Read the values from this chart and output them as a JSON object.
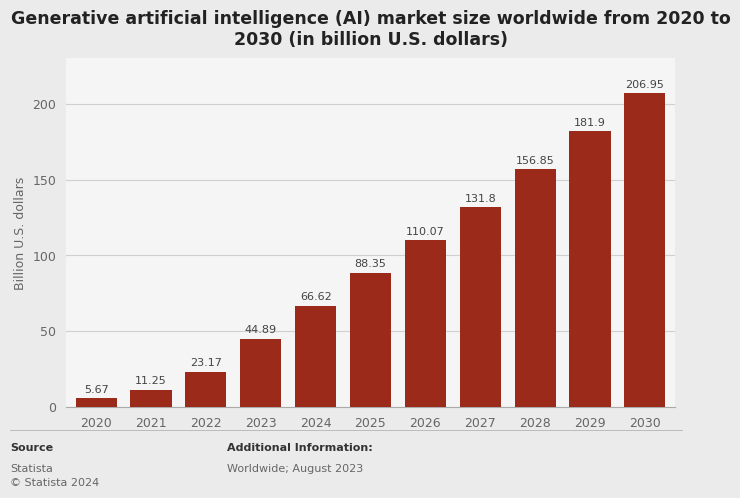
{
  "title": "Generative artificial intelligence (AI) market size worldwide from 2020 to\n2030 (in billion U.S. dollars)",
  "years": [
    "2020",
    "2021",
    "2022",
    "2023",
    "2024",
    "2025",
    "2026",
    "2027",
    "2028",
    "2029",
    "2030"
  ],
  "values": [
    5.67,
    11.25,
    23.17,
    44.89,
    66.62,
    88.35,
    110.07,
    131.8,
    156.85,
    181.9,
    206.95
  ],
  "bar_color": "#9B2A1A",
  "ylabel": "Billion U.S. dollars",
  "ylim": [
    0,
    230
  ],
  "yticks": [
    0,
    50,
    100,
    150,
    200
  ],
  "background_color": "#ebebeb",
  "plot_bg_color": "#f5f5f5",
  "grid_color": "#d0d0d0",
  "title_fontsize": 12.5,
  "label_fontsize": 9,
  "tick_fontsize": 9,
  "value_fontsize": 8,
  "source_label": "Source",
  "source_text": "Statista\n© Statista 2024",
  "additional_label": "Additional Information:",
  "additional_text": "Worldwide; August 2023"
}
